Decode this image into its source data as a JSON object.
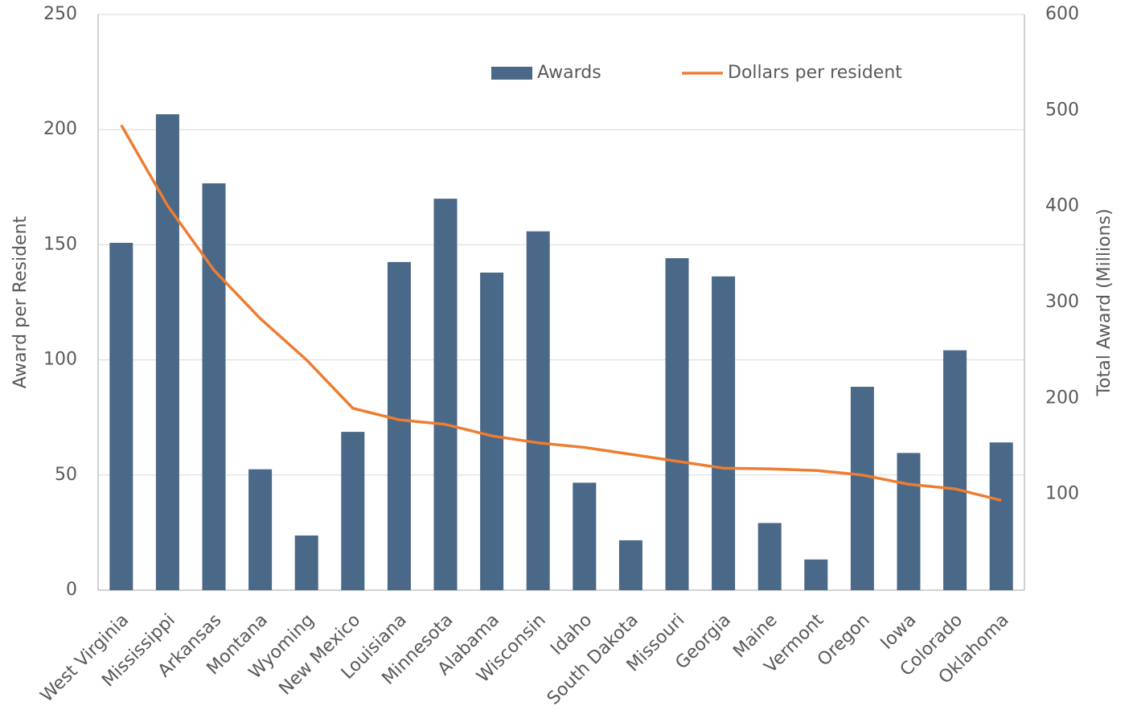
{
  "chart_data": {
    "type": "bar",
    "categories": [
      "West Virginia",
      "Mississippi",
      "Arkansas",
      "Montana",
      "Wyoming",
      "New Mexico",
      "Louisiana",
      "Minnesota",
      "Alabama",
      "Wisconsin",
      "Idaho",
      "South Dakota",
      "Missouri",
      "Georgia",
      "Maine",
      "Vermont",
      "Oregon",
      "Iowa",
      "Colorado",
      "Oklahoma"
    ],
    "series": [
      {
        "name": "Awards",
        "type": "bar",
        "axis": "y2",
        "color": "#4a6887",
        "values": [
          362,
          496,
          424,
          126,
          57,
          165,
          342,
          408,
          331,
          374,
          112,
          52,
          346,
          327,
          70,
          32,
          212,
          143,
          250,
          154
        ]
      },
      {
        "name": "Dollars per resident",
        "type": "line",
        "color": "#ed7d31",
        "values": [
          202,
          167,
          139,
          118,
          100,
          79,
          74,
          72,
          67,
          64,
          62,
          59,
          56,
          53,
          52.7,
          52,
          50,
          46,
          44,
          39
        ]
      }
    ],
    "ylabel": "Award per Resident",
    "y2label": "Total Award (Millions)",
    "ylim": [
      0,
      250
    ],
    "yticks": [
      0,
      50,
      100,
      150,
      200,
      250
    ],
    "y2lim": [
      0,
      600
    ],
    "y2ticks": [
      100,
      200,
      300,
      400,
      500,
      600
    ],
    "grid": true,
    "legend": "top"
  }
}
